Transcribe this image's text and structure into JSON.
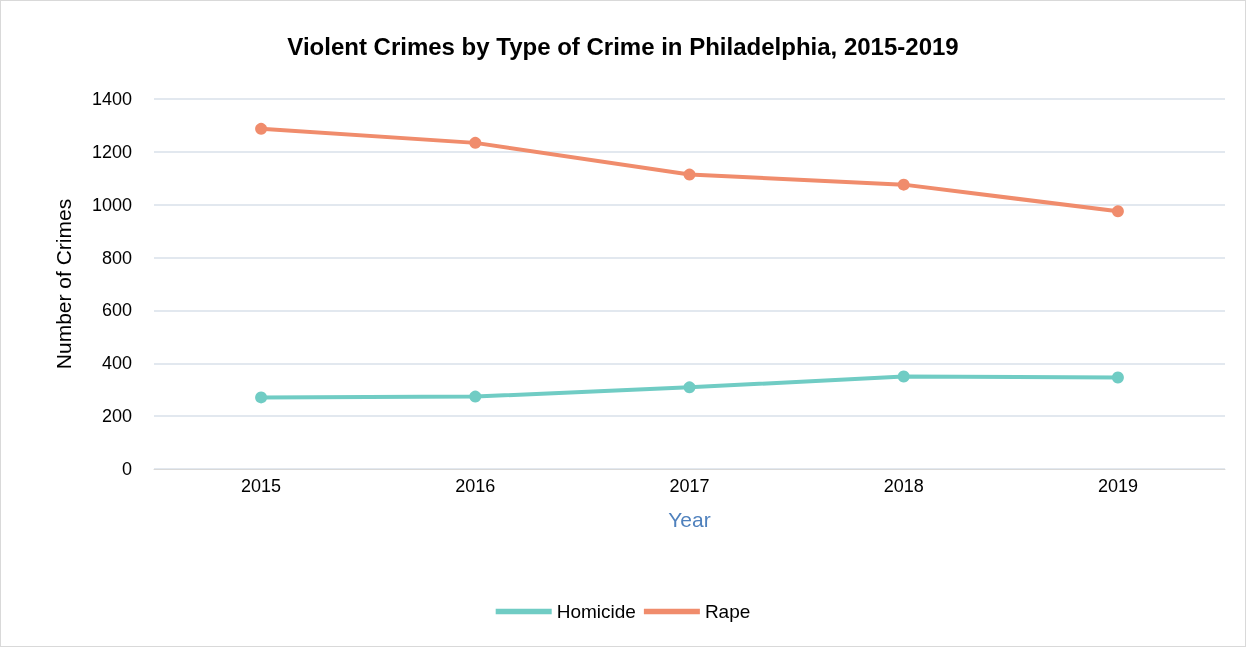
{
  "chart_data": {
    "type": "line",
    "title": "Violent Crimes by Type of Crime in Philadelphia, 2015-2019",
    "xlabel": "Year",
    "ylabel": "Number of Crimes",
    "categories": [
      "2015",
      "2016",
      "2017",
      "2018",
      "2019"
    ],
    "series": [
      {
        "name": "Homicide",
        "color": "#70ccc4",
        "values": [
          271,
          274,
          309,
          350,
          346
        ]
      },
      {
        "name": "Rape",
        "color": "#f08c6c",
        "values": [
          1287,
          1234,
          1114,
          1076,
          975
        ]
      }
    ],
    "ylim": [
      0,
      1400
    ],
    "yticks": [
      0,
      200,
      400,
      600,
      800,
      1000,
      1200,
      1400
    ],
    "grid": "y",
    "legend": "bottom",
    "marker": "circle",
    "line_style": "solid"
  }
}
